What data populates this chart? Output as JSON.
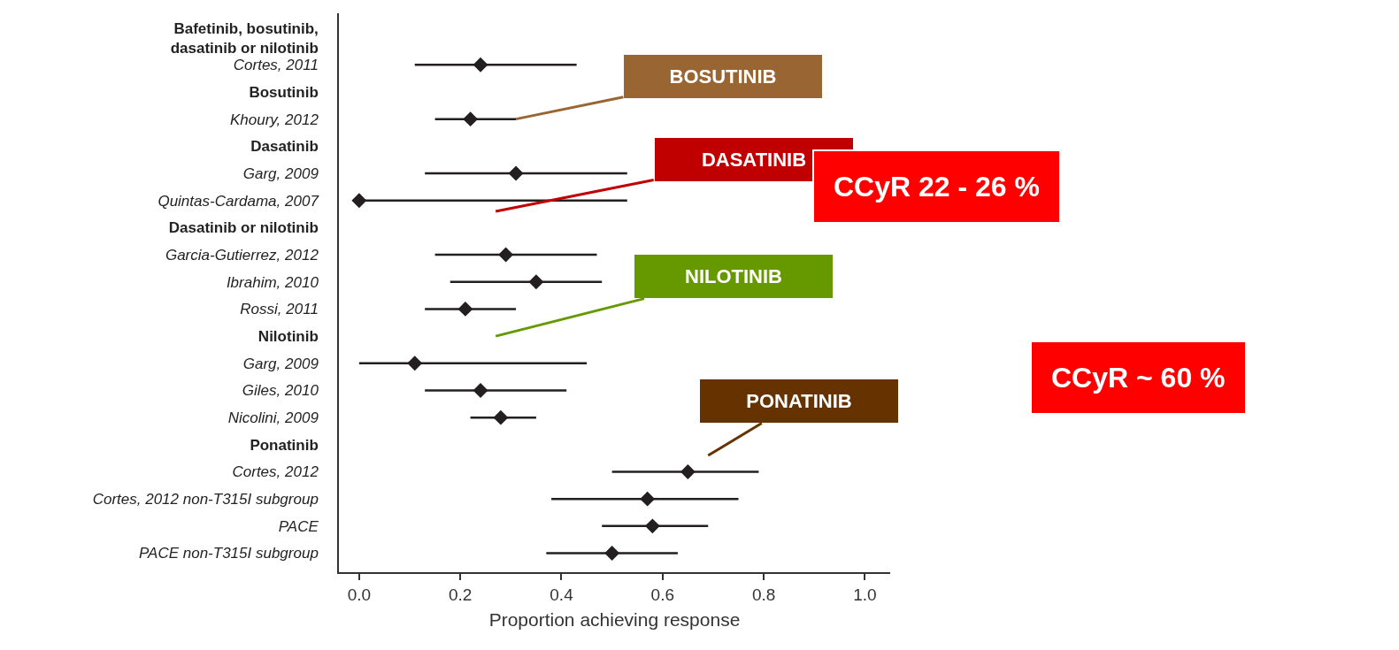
{
  "chart_data": {
    "type": "scatter",
    "orientation": "horizontal",
    "marker": "diamond",
    "xlabel": "Proportion achieving response",
    "categories": [
      "Bafetinib, bosutinib,\ndasatinib or nilotinib",
      "Cortes, 2011",
      "Bosutinib",
      "Khoury, 2012",
      "Dasatinib",
      "Garg, 2009",
      "Quintas-Cardama, 2007",
      "Dasatinib or nilotinib",
      "Garcia-Gutierrez, 2012",
      "Ibrahim, 2010",
      "Rossi, 2011",
      "Nilotinib",
      "Garg, 2009",
      "Giles, 2010",
      "Nicolini, 2009",
      "Ponatinib",
      "Cortes, 2012",
      "Cortes, 2012 non-T315I subgroup",
      "PACE",
      "PACE non-T315I subgroup"
    ],
    "values": [
      null,
      0.24,
      null,
      0.22,
      null,
      0.31,
      0.0,
      null,
      0.29,
      0.35,
      0.21,
      null,
      0.11,
      0.24,
      0.28,
      null,
      0.65,
      0.57,
      0.58,
      0.5
    ],
    "errors": [
      null,
      [
        0.11,
        0.43
      ],
      null,
      [
        0.15,
        0.31
      ],
      null,
      [
        0.13,
        0.53
      ],
      [
        0.0,
        0.53
      ],
      null,
      [
        0.15,
        0.47
      ],
      [
        0.18,
        0.48
      ],
      [
        0.13,
        0.31
      ],
      null,
      [
        0.0,
        0.45
      ],
      [
        0.13,
        0.41
      ],
      [
        0.22,
        0.35
      ],
      null,
      [
        0.5,
        0.79
      ],
      [
        0.38,
        0.75
      ],
      [
        0.48,
        0.69
      ],
      [
        0.37,
        0.63
      ]
    ],
    "color": "#231f20",
    "xlim": [
      -0.04,
      1.05
    ],
    "xticks": [
      {
        "value": 0,
        "label": "0.0"
      },
      {
        "value": 0.2,
        "label": "0.2"
      },
      {
        "value": 0.4,
        "label": "0.4"
      },
      {
        "value": 0.6,
        "label": "0.6"
      },
      {
        "value": 0.8,
        "label": "0.8"
      },
      {
        "value": 1,
        "label": "1.0"
      }
    ],
    "legend": false,
    "annotations": [
      "BOSUTINIB",
      "DASATINIB",
      "NILOTINIB",
      "PONATINIB",
      "CCyR 22 - 26 %",
      "CCyR ~ 60 %"
    ]
  }
}
